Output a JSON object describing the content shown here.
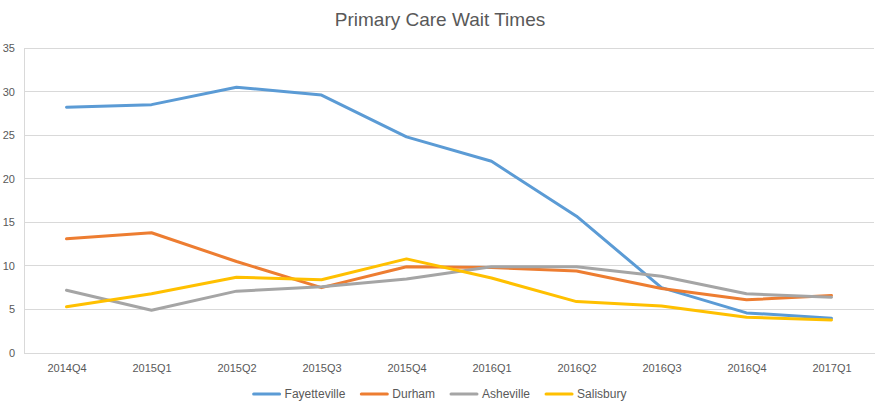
{
  "chart_data": {
    "type": "line",
    "title": "Primary Care Wait Times",
    "categories": [
      "2014Q4",
      "2015Q1",
      "2015Q2",
      "2015Q3",
      "2015Q4",
      "2016Q1",
      "2016Q2",
      "2016Q3",
      "2016Q4",
      "2017Q1"
    ],
    "series": [
      {
        "name": "Fayetteville",
        "color": "#5b9bd5",
        "values": [
          28.2,
          28.5,
          30.5,
          29.6,
          24.8,
          22.0,
          15.7,
          7.5,
          4.6,
          4.0
        ]
      },
      {
        "name": "Durham",
        "color": "#ed7d31",
        "values": [
          13.1,
          13.8,
          10.5,
          7.5,
          9.9,
          9.8,
          9.4,
          7.4,
          6.1,
          6.6
        ]
      },
      {
        "name": "Asheville",
        "color": "#a5a5a5",
        "values": [
          7.2,
          4.9,
          7.1,
          7.6,
          8.5,
          9.9,
          9.9,
          8.8,
          6.8,
          6.4
        ]
      },
      {
        "name": "Salisbury",
        "color": "#ffc000",
        "values": [
          5.3,
          6.8,
          8.7,
          8.4,
          10.8,
          8.6,
          5.9,
          5.4,
          4.1,
          3.8
        ]
      }
    ],
    "ylim": [
      0,
      35
    ],
    "yticks": [
      0,
      5,
      10,
      15,
      20,
      25,
      30,
      35
    ],
    "grid": true,
    "legend": "bottom"
  }
}
